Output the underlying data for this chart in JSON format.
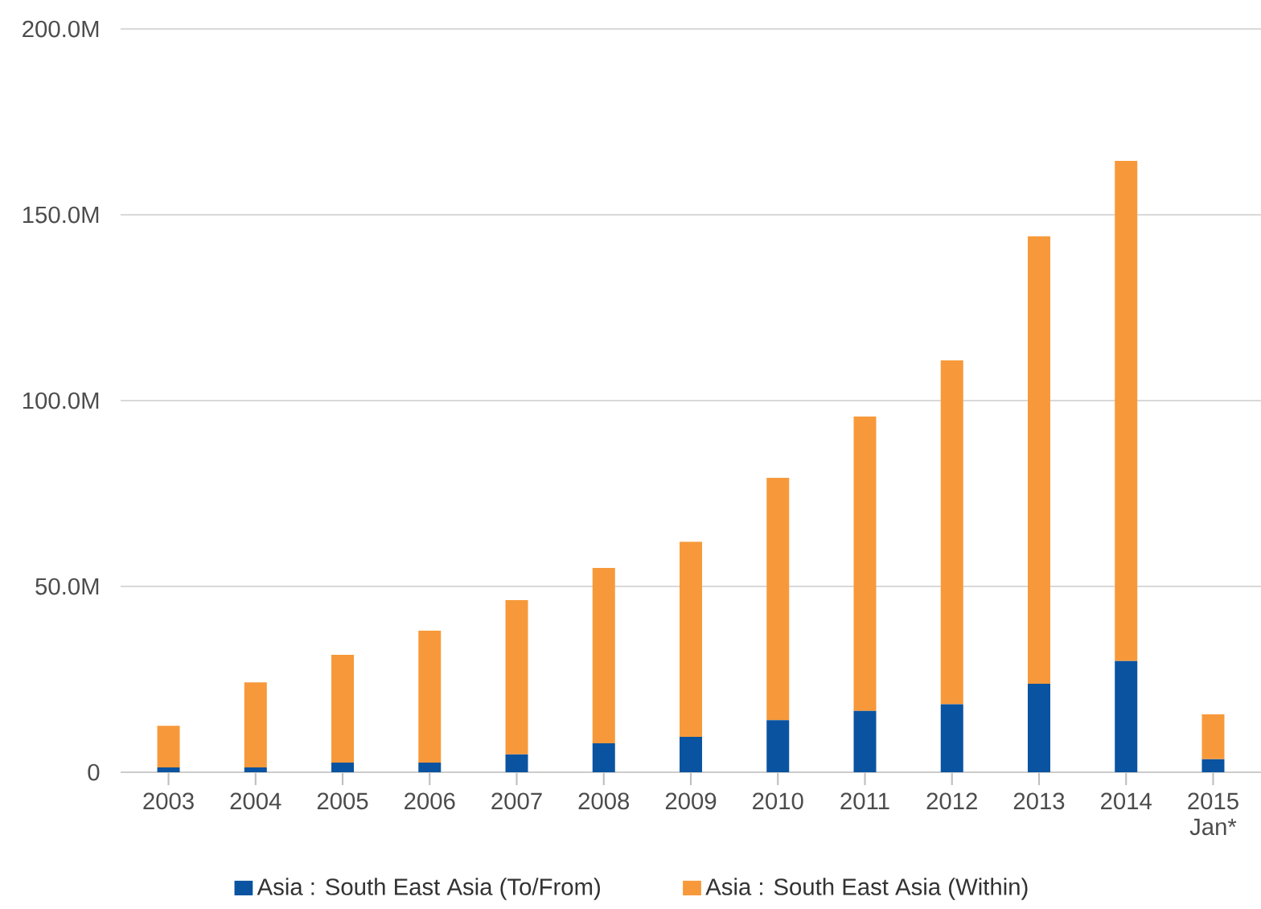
{
  "chart_data": {
    "type": "bar",
    "stacked": true,
    "categories": [
      "2003",
      "2004",
      "2005",
      "2006",
      "2007",
      "2008",
      "2009",
      "2010",
      "2011",
      "2012",
      "2013",
      "2014",
      "2015 Jan*"
    ],
    "series": [
      {
        "name": "Asia : South East Asia (To/From)",
        "color": "#0a53a0",
        "values": [
          1.3,
          1.3,
          2.6,
          2.6,
          4.8,
          7.8,
          9.5,
          14,
          16.5,
          18.3,
          23.8,
          29.9,
          3.5
        ]
      },
      {
        "name": "Asia : South East Asia (Within)",
        "color": "#f7993a",
        "values": [
          11.2,
          22.9,
          29,
          35.5,
          41.5,
          47.2,
          52.5,
          65.2,
          79.2,
          92.5,
          120.4,
          134.6,
          12.1
        ]
      }
    ],
    "ylim": [
      0,
      200
    ],
    "yticks": [
      {
        "value": 0,
        "label": "0"
      },
      {
        "value": 50,
        "label": "50.0M"
      },
      {
        "value": 100,
        "label": "100.0M"
      },
      {
        "value": 150,
        "label": "150.0M"
      },
      {
        "value": 200,
        "label": "200.0M"
      }
    ],
    "grid": "y",
    "legend": "bottom"
  }
}
